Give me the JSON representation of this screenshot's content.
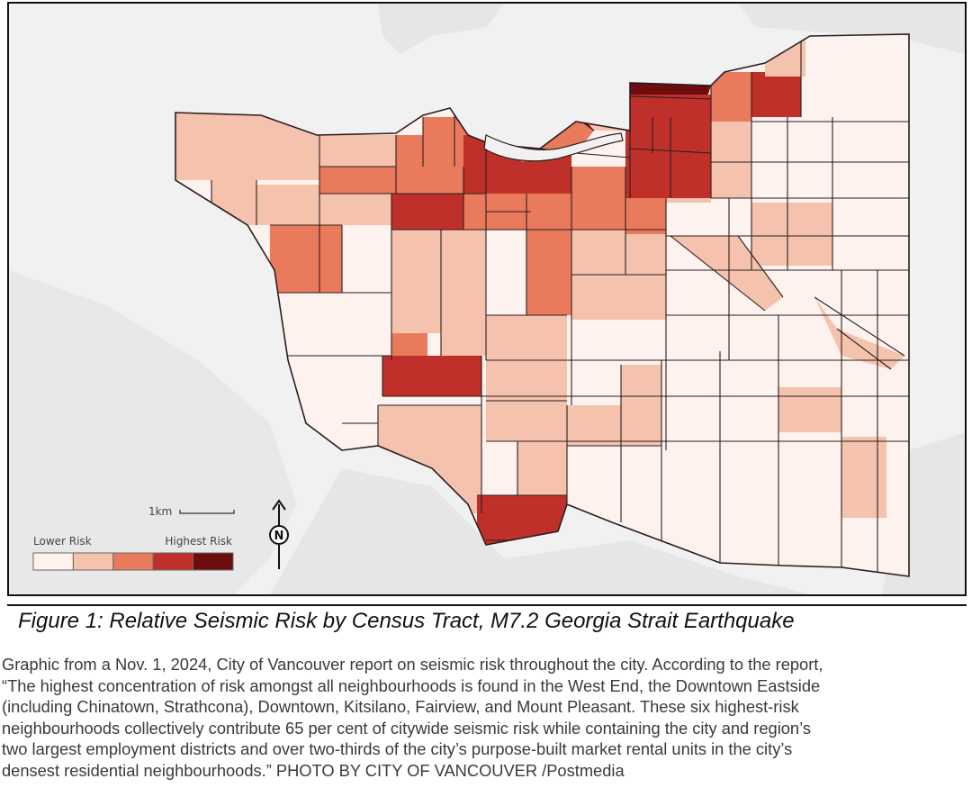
{
  "map": {
    "scale_label": "1km",
    "north_label": "N",
    "legend": {
      "low_label": "Lower Risk",
      "high_label": "Highest Risk",
      "classes": [
        "#fdf2ee",
        "#f5c2ae",
        "#ea7a5c",
        "#c0302b",
        "#6d0d0f"
      ]
    },
    "colors": {
      "water": "#f1f1f1",
      "outline": "#2a1e1e"
    }
  },
  "caption": "Figure 1: Relative Seismic Risk by Census Tract, M7.2 Georgia Strait Earthquake",
  "description_lines": [
    "Graphic from a Nov. 1, 2024, City of Vancouver report on seismic risk throughout the city. According to the report,",
    "“The highest concentration of risk amongst all neighbourhoods is found in the West End, the Downtown Eastside",
    "(including Chinatown, Strathcona), Downtown, Kitsilano, Fairview, and Mount Pleasant. These six highest-risk",
    "neighbourhoods collectively contribute 65 per cent of citywide seismic risk while containing the city and region’s",
    "two largest employment districts and over two-thirds of the city’s purpose-built market rental units in the city’s",
    "densest residential neighbourhoods.” PHOTO BY CITY OF VANCOUVER /Postmedia"
  ]
}
